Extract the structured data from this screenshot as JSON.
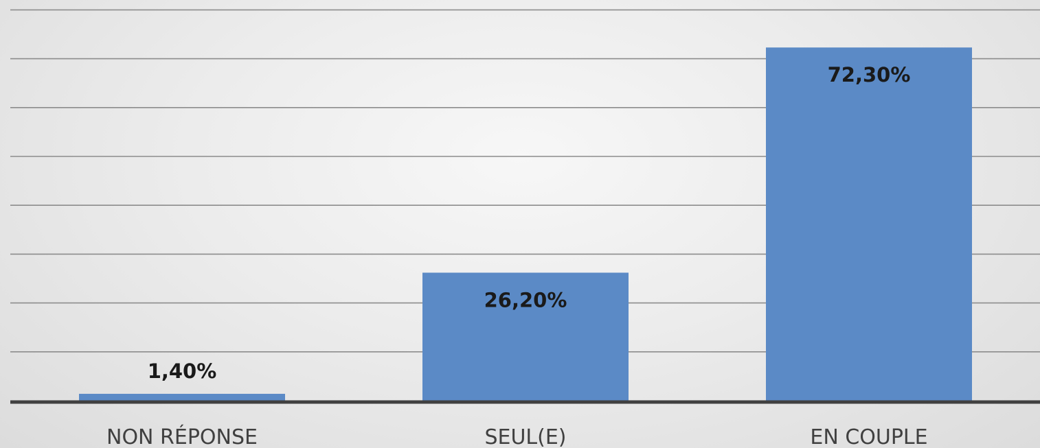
{
  "chart_data": {
    "type": "bar",
    "categories": [
      "NON RÉPONSE",
      "SEUL(E)",
      "EN COUPLE"
    ],
    "values": [
      1.4,
      26.2,
      72.3
    ],
    "data_labels": [
      "1,40%",
      "26,20%",
      "72,30%"
    ],
    "ylim": [
      0,
      80
    ],
    "grid": true,
    "legend": "none",
    "bar_color": "#5b8ac6",
    "axis_color": "#404040",
    "grid_color": "#8c8c8c"
  }
}
